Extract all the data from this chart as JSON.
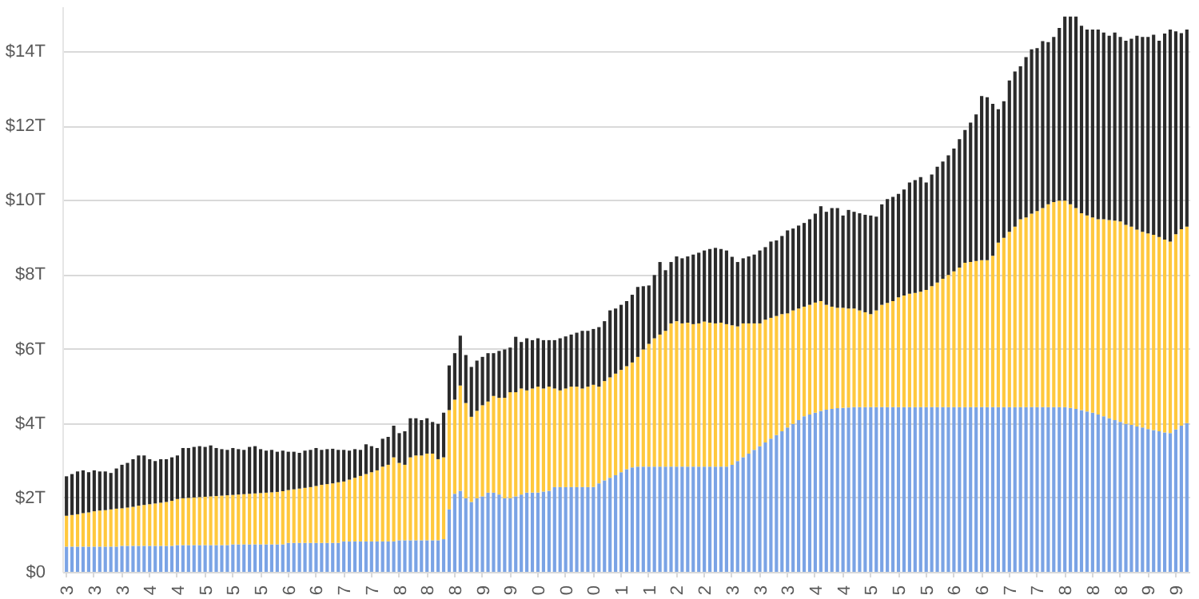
{
  "chart_data": {
    "type": "bar",
    "stacked": true,
    "categories": [
      "3",
      null,
      null,
      null,
      null,
      "3",
      null,
      null,
      null,
      null,
      "3",
      null,
      null,
      null,
      null,
      "4",
      null,
      null,
      null,
      null,
      "4",
      null,
      null,
      null,
      null,
      "5",
      null,
      null,
      null,
      null,
      "5",
      null,
      null,
      null,
      null,
      "5",
      null,
      null,
      null,
      null,
      "6",
      null,
      null,
      null,
      null,
      "6",
      null,
      null,
      null,
      null,
      "7",
      null,
      null,
      null,
      null,
      "7",
      null,
      null,
      null,
      null,
      "8",
      null,
      null,
      null,
      null,
      "8",
      null,
      null,
      null,
      null,
      "8",
      null,
      null,
      null,
      null,
      "9",
      null,
      null,
      null,
      null,
      "9",
      null,
      null,
      null,
      null,
      "0",
      null,
      null,
      null,
      null,
      "0",
      null,
      null,
      null,
      null,
      "0",
      null,
      null,
      null,
      null,
      "1",
      null,
      null,
      null,
      null,
      "1",
      null,
      null,
      null,
      null,
      "2",
      null,
      null,
      null,
      null,
      "2",
      null,
      null,
      null,
      null,
      "3",
      null,
      null,
      null,
      null,
      "3",
      null,
      null,
      null,
      null,
      "3",
      null,
      null,
      null,
      null,
      "4",
      null,
      null,
      null,
      null,
      "4",
      null,
      null,
      null,
      null,
      "5",
      null,
      null,
      null,
      null,
      "5",
      null,
      null,
      null,
      null,
      "5",
      null,
      null,
      null,
      null,
      "6",
      null,
      null,
      null,
      null,
      "6",
      null,
      null,
      null,
      null,
      "7",
      null,
      null,
      null,
      null,
      "7",
      null,
      null,
      null,
      null,
      "8",
      null,
      null,
      null,
      null,
      "8",
      null,
      null,
      null,
      null,
      "8",
      null,
      null,
      null,
      null,
      "9",
      null,
      null,
      null,
      null,
      "9",
      null,
      null
    ],
    "series": [
      {
        "color": "#7aa3e5",
        "values": [
          0.7,
          0.7,
          0.7,
          0.7,
          0.7,
          0.7,
          0.7,
          0.7,
          0.7,
          0.7,
          0.72,
          0.72,
          0.72,
          0.72,
          0.72,
          0.72,
          0.72,
          0.72,
          0.72,
          0.72,
          0.74,
          0.74,
          0.74,
          0.74,
          0.74,
          0.74,
          0.74,
          0.74,
          0.74,
          0.74,
          0.76,
          0.76,
          0.76,
          0.76,
          0.76,
          0.76,
          0.76,
          0.76,
          0.76,
          0.76,
          0.8,
          0.8,
          0.8,
          0.8,
          0.8,
          0.8,
          0.8,
          0.8,
          0.8,
          0.8,
          0.84,
          0.84,
          0.84,
          0.84,
          0.84,
          0.84,
          0.84,
          0.84,
          0.84,
          0.84,
          0.87,
          0.87,
          0.87,
          0.87,
          0.87,
          0.87,
          0.87,
          0.87,
          0.9,
          1.7,
          2.12,
          2.2,
          2.0,
          1.9,
          2.0,
          2.05,
          2.15,
          2.15,
          2.1,
          2.0,
          2.0,
          2.05,
          2.1,
          2.15,
          2.15,
          2.15,
          2.18,
          2.2,
          2.3,
          2.3,
          2.3,
          2.3,
          2.3,
          2.3,
          2.3,
          2.3,
          2.4,
          2.48,
          2.55,
          2.62,
          2.7,
          2.78,
          2.83,
          2.85,
          2.85,
          2.85,
          2.85,
          2.85,
          2.85,
          2.85,
          2.85,
          2.85,
          2.85,
          2.85,
          2.85,
          2.85,
          2.85,
          2.85,
          2.85,
          2.85,
          2.9,
          3.0,
          3.1,
          3.2,
          3.3,
          3.4,
          3.5,
          3.6,
          3.7,
          3.8,
          3.9,
          4.0,
          4.1,
          4.2,
          4.25,
          4.3,
          4.35,
          4.38,
          4.4,
          4.42,
          4.43,
          4.44,
          4.45,
          4.45,
          4.45,
          4.45,
          4.45,
          4.45,
          4.45,
          4.45,
          4.45,
          4.45,
          4.45,
          4.45,
          4.45,
          4.45,
          4.45,
          4.45,
          4.45,
          4.45,
          4.45,
          4.45,
          4.45,
          4.45,
          4.45,
          4.45,
          4.45,
          4.45,
          4.45,
          4.45,
          4.45,
          4.45,
          4.45,
          4.45,
          4.45,
          4.45,
          4.45,
          4.45,
          4.45,
          4.45,
          4.45,
          4.43,
          4.4,
          4.37,
          4.33,
          4.3,
          4.25,
          4.2,
          4.15,
          4.1,
          4.05,
          4.0,
          3.97,
          3.93,
          3.9,
          3.86,
          3.83,
          3.8,
          3.77,
          3.75,
          3.85,
          3.95,
          4.02
        ]
      },
      {
        "color": "#ffc83d",
        "values": [
          0.83,
          0.85,
          0.87,
          0.9,
          0.92,
          0.95,
          0.97,
          0.98,
          1.0,
          1.02,
          1.01,
          1.03,
          1.05,
          1.08,
          1.1,
          1.12,
          1.14,
          1.16,
          1.18,
          1.21,
          1.24,
          1.26,
          1.27,
          1.28,
          1.29,
          1.3,
          1.31,
          1.32,
          1.33,
          1.34,
          1.33,
          1.34,
          1.35,
          1.36,
          1.37,
          1.38,
          1.39,
          1.4,
          1.41,
          1.43,
          1.42,
          1.44,
          1.46,
          1.48,
          1.5,
          1.53,
          1.56,
          1.58,
          1.6,
          1.63,
          1.61,
          1.66,
          1.71,
          1.76,
          1.81,
          1.86,
          1.91,
          2.01,
          2.06,
          2.26,
          2.08,
          2.03,
          2.23,
          2.28,
          2.28,
          2.33,
          2.33,
          2.18,
          2.2,
          2.67,
          2.53,
          2.83,
          2.56,
          2.29,
          2.35,
          2.45,
          2.45,
          2.6,
          2.6,
          2.7,
          2.85,
          2.8,
          2.85,
          2.75,
          2.8,
          2.85,
          2.77,
          2.8,
          2.65,
          2.6,
          2.65,
          2.7,
          2.7,
          2.65,
          2.7,
          2.75,
          2.6,
          2.67,
          2.7,
          2.73,
          2.75,
          2.77,
          2.82,
          2.95,
          3.15,
          3.3,
          3.45,
          3.55,
          3.65,
          3.85,
          3.91,
          3.85,
          3.87,
          3.83,
          3.85,
          3.9,
          3.87,
          3.85,
          3.87,
          3.83,
          3.75,
          3.62,
          3.6,
          3.5,
          3.4,
          3.3,
          3.3,
          3.25,
          3.2,
          3.15,
          3.07,
          3.05,
          3.0,
          2.95,
          2.95,
          2.96,
          2.95,
          2.82,
          2.75,
          2.7,
          2.69,
          2.66,
          2.65,
          2.6,
          2.55,
          2.5,
          2.6,
          2.75,
          2.8,
          2.85,
          2.95,
          3.0,
          3.05,
          3.07,
          3.1,
          3.15,
          3.25,
          3.35,
          3.45,
          3.55,
          3.65,
          3.75,
          3.88,
          3.9,
          3.93,
          3.95,
          3.95,
          4.07,
          4.42,
          4.55,
          4.71,
          4.85,
          5.05,
          5.1,
          5.2,
          5.27,
          5.35,
          5.45,
          5.51,
          5.55,
          5.55,
          5.47,
          5.4,
          5.29,
          5.27,
          5.25,
          5.25,
          5.3,
          5.33,
          5.36,
          5.39,
          5.35,
          5.33,
          5.29,
          5.26,
          5.26,
          5.25,
          5.22,
          5.18,
          5.15,
          5.25,
          5.28,
          5.28
        ]
      },
      {
        "color": "#2b2b2b",
        "values": [
          1.06,
          1.1,
          1.15,
          1.15,
          1.08,
          1.1,
          1.05,
          1.04,
          0.98,
          1.08,
          1.17,
          1.2,
          1.28,
          1.35,
          1.33,
          1.21,
          1.14,
          1.17,
          1.15,
          1.17,
          1.17,
          1.35,
          1.34,
          1.36,
          1.37,
          1.34,
          1.37,
          1.29,
          1.25,
          1.22,
          1.26,
          1.22,
          1.19,
          1.26,
          1.27,
          1.18,
          1.13,
          1.14,
          1.08,
          1.09,
          1.03,
          1.01,
          0.96,
          1.0,
          1.0,
          1.02,
          0.94,
          0.94,
          0.93,
          0.87,
          0.85,
          0.78,
          0.77,
          0.7,
          0.8,
          0.7,
          0.6,
          0.75,
          0.75,
          0.85,
          0.8,
          0.9,
          1.05,
          1.0,
          0.95,
          0.95,
          0.85,
          0.95,
          1.2,
          1.2,
          1.25,
          1.34,
          1.29,
          1.34,
          1.35,
          1.3,
          1.3,
          1.15,
          1.26,
          1.3,
          1.2,
          1.49,
          1.25,
          1.4,
          1.3,
          1.3,
          1.3,
          1.25,
          1.3,
          1.4,
          1.4,
          1.4,
          1.45,
          1.55,
          1.5,
          1.5,
          1.6,
          1.61,
          1.8,
          1.75,
          1.75,
          1.75,
          1.82,
          1.88,
          1.7,
          1.57,
          1.7,
          1.95,
          1.63,
          1.65,
          1.74,
          1.75,
          1.78,
          1.87,
          1.9,
          1.91,
          1.98,
          2.03,
          1.98,
          1.98,
          1.84,
          1.73,
          1.75,
          1.8,
          1.85,
          1.96,
          1.95,
          2.05,
          2.03,
          2.1,
          2.23,
          2.2,
          2.23,
          2.25,
          2.3,
          2.39,
          2.55,
          2.5,
          2.65,
          2.68,
          2.48,
          2.65,
          2.6,
          2.61,
          2.62,
          2.65,
          2.52,
          2.7,
          2.79,
          2.8,
          2.78,
          2.85,
          2.99,
          3.03,
          3.08,
          2.89,
          3.0,
          3.11,
          3.15,
          3.22,
          3.3,
          3.45,
          3.57,
          3.75,
          3.94,
          4.41,
          4.38,
          4.08,
          3.59,
          3.67,
          4.07,
          4.17,
          4.11,
          4.31,
          4.42,
          4.38,
          4.49,
          4.36,
          4.44,
          4.64,
          4.95,
          5.05,
          5.15,
          5.04,
          5.0,
          5.05,
          5.1,
          5.02,
          4.95,
          5.06,
          4.96,
          4.95,
          5.05,
          5.21,
          5.24,
          5.28,
          5.38,
          5.28,
          5.54,
          5.7,
          5.45,
          5.27,
          5.3
        ]
      }
    ],
    "ylim": [
      0,
      15.2
    ],
    "yticks": [
      {
        "value": 0,
        "label": "$0"
      },
      {
        "value": 2,
        "label": "$2T"
      },
      {
        "value": 4,
        "label": "$4T"
      },
      {
        "value": 6,
        "label": "$6T"
      },
      {
        "value": 8,
        "label": "$8T"
      },
      {
        "value": 10,
        "label": "$10T"
      },
      {
        "value": 12,
        "label": "$12T"
      },
      {
        "value": 14,
        "label": "$14T"
      }
    ],
    "grid": "y"
  }
}
